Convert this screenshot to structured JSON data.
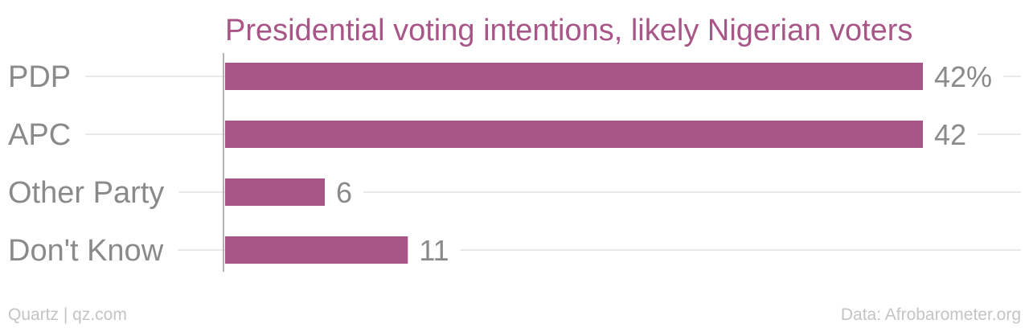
{
  "chart_data": {
    "type": "bar",
    "orientation": "horizontal",
    "title": "Presidential voting intentions, likely Nigerian voters",
    "categories": [
      "PDP",
      "APC",
      "Other Party",
      "Don't Know"
    ],
    "values": [
      42,
      42,
      6,
      11
    ],
    "value_labels": [
      "42%",
      "42",
      "6",
      "11"
    ],
    "unit": "%",
    "xlim": [
      0,
      42
    ],
    "grid": true,
    "legend": "none"
  },
  "footer": {
    "left": "Quartz | qz.com",
    "right": "Data: Afrobarometer.org"
  },
  "colors": {
    "bar": "#a85687",
    "title": "#a85687",
    "category_text": "#8a8a8a",
    "value_text": "#8a8a8a",
    "gridline": "#e8e8e8",
    "axis": "#9a9a9a",
    "footer_text": "#c4c4c4"
  }
}
